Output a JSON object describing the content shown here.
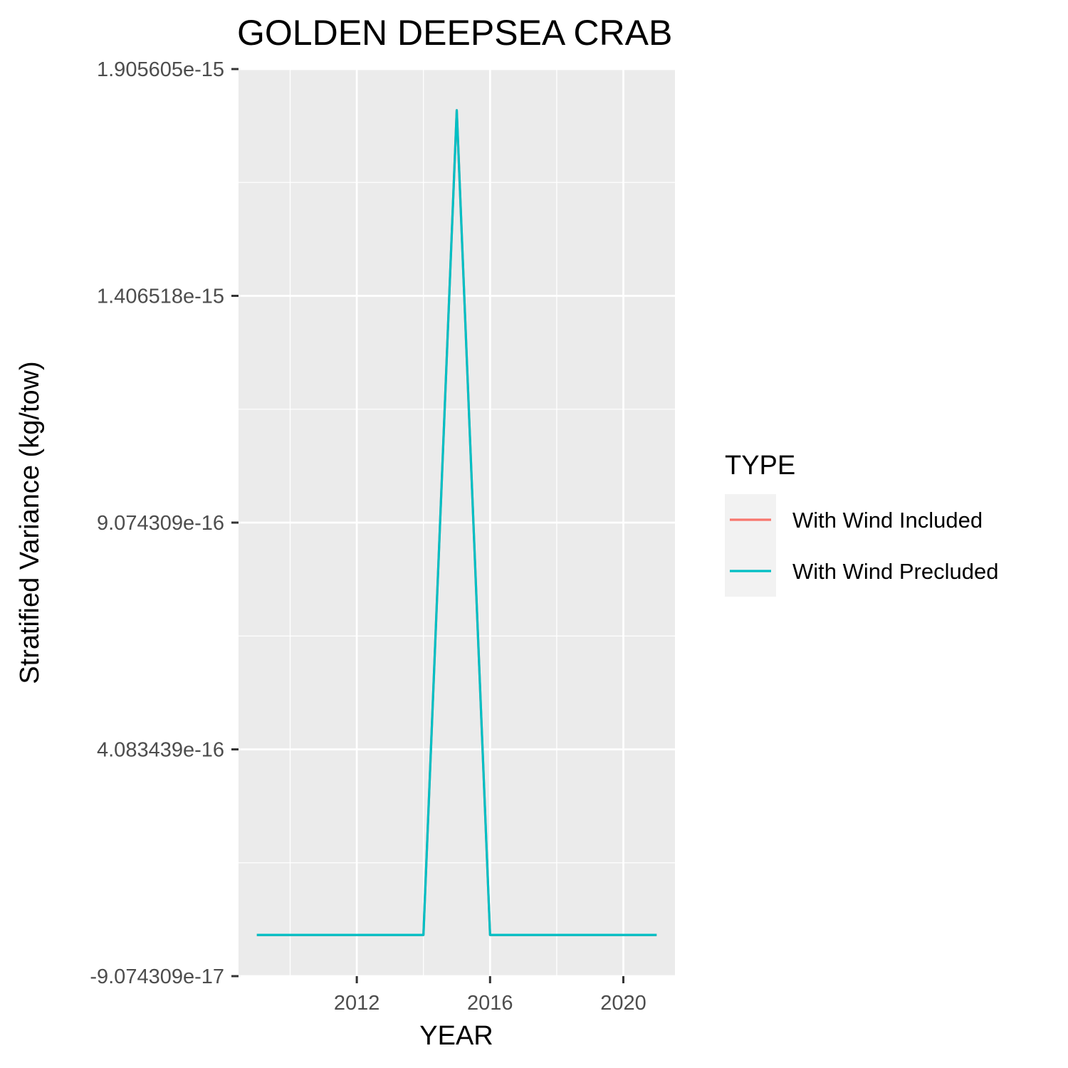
{
  "chart_data": {
    "type": "line",
    "title": "GOLDEN DEEPSEA CRAB",
    "xlabel": "YEAR",
    "ylabel": "Stratified Variance (kg/tow)",
    "x": [
      2009,
      2010,
      2011,
      2012,
      2013,
      2014,
      2015,
      2016,
      2017,
      2018,
      2019,
      2020,
      2021
    ],
    "xlim": [
      2008.45,
      2021.55
    ],
    "ylim": [
      -9.074309e-17,
      1.905605e-15
    ],
    "x_ticks": [
      2012,
      2016,
      2020
    ],
    "x_tick_labels": [
      "2012",
      "2016",
      "2020"
    ],
    "x_minor_ticks": [
      2010,
      2014,
      2018
    ],
    "y_ticks": [
      -9.074309e-17,
      4.083439e-16,
      9.074309e-16,
      1.406518e-15,
      1.905605e-15
    ],
    "y_tick_labels": [
      "-9.074309e-17",
      "4.083439e-16",
      "9.074309e-16",
      "1.406518e-15",
      "1.905605e-15"
    ],
    "grid": true,
    "legend": {
      "title": "TYPE",
      "position": "right"
    },
    "series": [
      {
        "name": "With Wind Included",
        "color": "#F8766D",
        "values": [
          0,
          0,
          0,
          0,
          0,
          0,
          1.815e-15,
          0,
          0,
          0,
          0,
          0,
          0
        ]
      },
      {
        "name": "With Wind Precluded",
        "color": "#00BFC4",
        "values": [
          0,
          0,
          0,
          0,
          0,
          0,
          1.815e-15,
          0,
          0,
          0,
          0,
          0,
          0
        ]
      }
    ],
    "panel_color": "#EBEBEB",
    "legend_key_color": "#F2F2F2"
  }
}
